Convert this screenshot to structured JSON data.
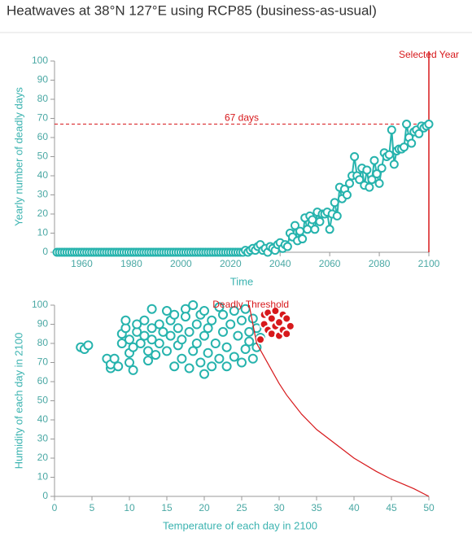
{
  "title": "Heatwaves at 38°N 127°E using RCP85 (business-as-usual)",
  "chart_data": [
    {
      "type": "line",
      "x_label": "Time",
      "y_label": "Yearly number of deadly days",
      "x": [
        1950,
        1951,
        1952,
        1953,
        1954,
        1955,
        1956,
        1957,
        1958,
        1959,
        1960,
        1961,
        1962,
        1963,
        1964,
        1965,
        1966,
        1967,
        1968,
        1969,
        1970,
        1971,
        1972,
        1973,
        1974,
        1975,
        1976,
        1977,
        1978,
        1979,
        1980,
        1981,
        1982,
        1983,
        1984,
        1985,
        1986,
        1987,
        1988,
        1989,
        1990,
        1991,
        1992,
        1993,
        1994,
        1995,
        1996,
        1997,
        1998,
        1999,
        2000,
        2001,
        2002,
        2003,
        2004,
        2005,
        2006,
        2007,
        2008,
        2009,
        2010,
        2011,
        2012,
        2013,
        2014,
        2015,
        2016,
        2017,
        2018,
        2019,
        2020,
        2021,
        2022,
        2023,
        2024,
        2025,
        2026,
        2027,
        2028,
        2029,
        2030,
        2031,
        2032,
        2033,
        2034,
        2035,
        2036,
        2037,
        2038,
        2039,
        2040,
        2041,
        2042,
        2043,
        2044,
        2045,
        2046,
        2047,
        2048,
        2049,
        2050,
        2051,
        2052,
        2053,
        2054,
        2055,
        2056,
        2057,
        2058,
        2059,
        2060,
        2061,
        2062,
        2063,
        2064,
        2065,
        2066,
        2067,
        2068,
        2069,
        2070,
        2071,
        2072,
        2073,
        2074,
        2075,
        2076,
        2077,
        2078,
        2079,
        2080,
        2081,
        2082,
        2083,
        2084,
        2085,
        2086,
        2087,
        2088,
        2089,
        2090,
        2091,
        2092,
        2093,
        2094,
        2095,
        2096,
        2097,
        2098,
        2099,
        2100
      ],
      "series": [
        {
          "color": "#26b3ad",
          "values": [
            0,
            0,
            0,
            0,
            0,
            0,
            0,
            0,
            0,
            0,
            0,
            0,
            0,
            0,
            0,
            0,
            0,
            0,
            0,
            0,
            0,
            0,
            0,
            0,
            0,
            0,
            0,
            0,
            0,
            0,
            0,
            0,
            0,
            0,
            0,
            0,
            0,
            0,
            0,
            0,
            0,
            0,
            0,
            0,
            0,
            0,
            0,
            0,
            0,
            0,
            0,
            0,
            0,
            0,
            0,
            0,
            0,
            0,
            0,
            0,
            0,
            0,
            0,
            0,
            0,
            0,
            0,
            0,
            0,
            0,
            0,
            0,
            0,
            0,
            0,
            0,
            1,
            0,
            1,
            2,
            1,
            3,
            4,
            1,
            2,
            0,
            3,
            2,
            1,
            4,
            5,
            2,
            4,
            3,
            10,
            8,
            14,
            6,
            11,
            7,
            18,
            12,
            19,
            17,
            12,
            21,
            16,
            20,
            20,
            21,
            12,
            20,
            26,
            19,
            34,
            28,
            33,
            30,
            36,
            40,
            50,
            40,
            38,
            44,
            35,
            43,
            34,
            38,
            48,
            41,
            36,
            44,
            52,
            50,
            51,
            64,
            46,
            53,
            54,
            54,
            55,
            67,
            60,
            57,
            63,
            64,
            62,
            66,
            65,
            66,
            67
          ]
        }
      ],
      "xlim": [
        1949,
        2100
      ],
      "xticks": [
        1960,
        1980,
        2000,
        2020,
        2040,
        2060,
        2080,
        2100
      ],
      "ylim": [
        0,
        100
      ],
      "yticks": [
        0,
        10,
        20,
        30,
        40,
        50,
        60,
        70,
        80,
        90,
        100
      ],
      "reference_line": {
        "value": 67,
        "label": "67 days",
        "color": "#d7191c"
      },
      "selected_line": {
        "value": 2100,
        "label": "Selected Year",
        "color": "#d7191c"
      }
    },
    {
      "type": "scatter",
      "x_label": "Temperature of each day in 2100",
      "y_label": "Humidity of each day in 2100",
      "series": [
        {
          "color": "#26b3ad",
          "hollow": true,
          "x": [
            3.5,
            4,
            4.5,
            7,
            7.5,
            7.5,
            8,
            8.5,
            9,
            9,
            9.5,
            9.5,
            10,
            10,
            10,
            10.5,
            10.5,
            11,
            11,
            11.5,
            12,
            12,
            12.5,
            12.5,
            13,
            13,
            13,
            13.5,
            14,
            14,
            14.5,
            15,
            15,
            15.5,
            15.5,
            16,
            16,
            16.5,
            16.5,
            17,
            17,
            17.5,
            17.5,
            18,
            18,
            18.5,
            18.5,
            19,
            19,
            19.5,
            19.5,
            20,
            20,
            20,
            20.5,
            20.5,
            21,
            21,
            21.5,
            22,
            22,
            22.5,
            22.5,
            23,
            23,
            23.5,
            24,
            24,
            24.5,
            25,
            25,
            25.5,
            25.5,
            26,
            26,
            26.5,
            26.5,
            27,
            27,
            27.5
          ],
          "values": [
            78,
            77,
            79,
            72,
            67,
            69,
            72,
            68,
            80,
            85,
            88,
            92,
            82,
            75,
            70,
            66,
            78,
            86,
            90,
            80,
            84,
            92,
            76,
            71,
            98,
            88,
            82,
            74,
            90,
            80,
            86,
            97,
            76,
            92,
            84,
            68,
            95,
            79,
            88,
            72,
            82,
            98,
            94,
            86,
            67,
            76,
            100,
            90,
            80,
            70,
            95,
            84,
            64,
            97,
            75,
            88,
            68,
            92,
            80,
            99,
            72,
            86,
            95,
            68,
            78,
            90,
            97,
            73,
            84,
            70,
            92,
            77,
            98,
            86,
            81,
            93,
            72,
            88,
            78,
            83
          ]
        },
        {
          "color": "#d7191c",
          "hollow": false,
          "x": [
            27.5,
            28,
            28,
            28.5,
            28.5,
            29,
            29,
            29.5,
            29.5,
            30,
            30,
            30.5,
            30.5,
            31,
            31,
            31.5
          ],
          "values": [
            82,
            90,
            95,
            87,
            96,
            93,
            85,
            97,
            89,
            84,
            91,
            95,
            87,
            93,
            85,
            89
          ]
        }
      ],
      "threshold": {
        "label": "Deadly Threshold",
        "color": "#d7191c",
        "x": [
          26,
          26.5,
          27,
          28,
          29,
          30,
          31,
          32,
          33,
          35,
          38,
          40,
          43,
          45,
          48,
          50
        ],
        "values": [
          100,
          90,
          80,
          73,
          66,
          59,
          53,
          48,
          43,
          35,
          26,
          20,
          13,
          9,
          4,
          0
        ]
      },
      "xlim": [
        0,
        50
      ],
      "xticks": [
        0,
        5,
        10,
        15,
        20,
        25,
        30,
        35,
        40,
        45,
        50
      ],
      "ylim": [
        0,
        100
      ],
      "yticks": [
        0,
        10,
        20,
        30,
        40,
        50,
        60,
        70,
        80,
        90,
        100
      ]
    }
  ]
}
